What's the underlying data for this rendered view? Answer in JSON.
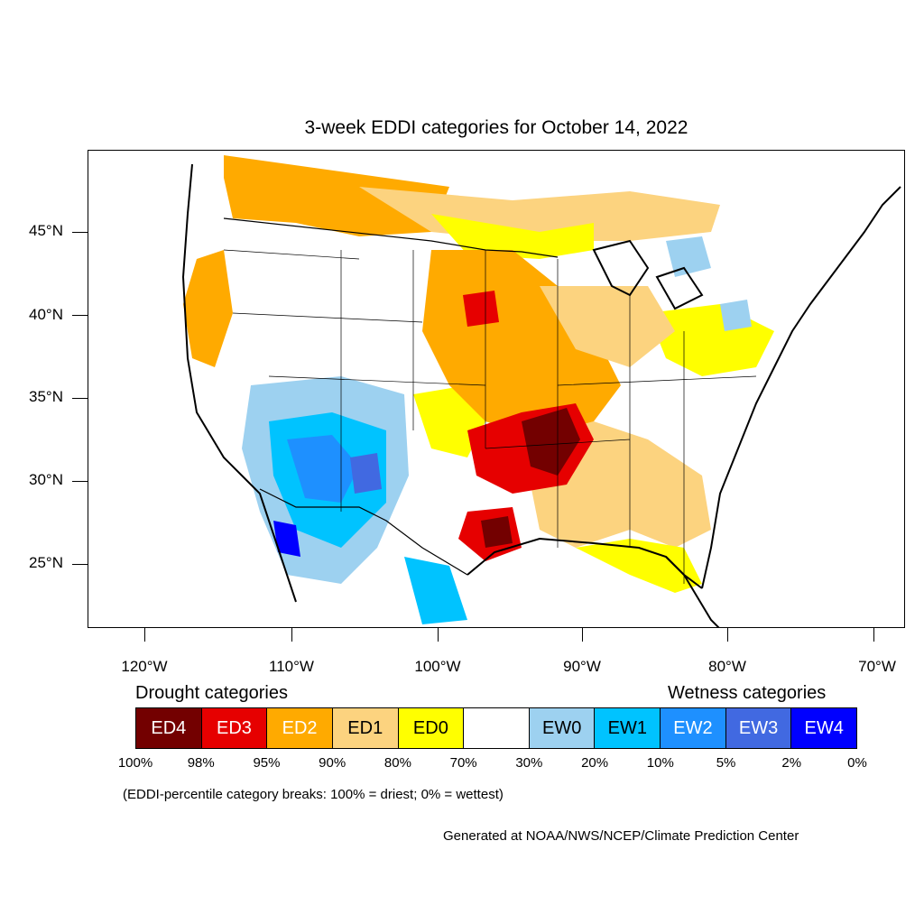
{
  "title": "3-week EDDI categories for October 14, 2022",
  "lat_labels": [
    "45°N",
    "40°N",
    "35°N",
    "30°N",
    "25°N"
  ],
  "lon_labels": [
    "120°W",
    "110°W",
    "100°W",
    "90°W",
    "80°W",
    "70°W"
  ],
  "drought_heading": "Drought categories",
  "wetness_heading": "Wetness categories",
  "categories": [
    {
      "label": "ED4",
      "color": "#730000",
      "text_color": "#ffffff"
    },
    {
      "label": "ED3",
      "color": "#e60000",
      "text_color": "#ffffff"
    },
    {
      "label": "ED2",
      "color": "#ffaa00",
      "text_color": "#ffffff"
    },
    {
      "label": "ED1",
      "color": "#fcd37f",
      "text_color": "#000000"
    },
    {
      "label": "ED0",
      "color": "#ffff00",
      "text_color": "#000000"
    },
    {
      "label": "",
      "color": "#ffffff",
      "text_color": "#000000"
    },
    {
      "label": "EW0",
      "color": "#9dd1f0",
      "text_color": "#000000"
    },
    {
      "label": "EW1",
      "color": "#00c3ff",
      "text_color": "#000000"
    },
    {
      "label": "EW2",
      "color": "#1e90ff",
      "text_color": "#ffffff"
    },
    {
      "label": "EW3",
      "color": "#4169e1",
      "text_color": "#ffffff"
    },
    {
      "label": "EW4",
      "color": "#0000ff",
      "text_color": "#ffffff"
    }
  ],
  "percent_breaks": [
    "100%",
    "98%",
    "95%",
    "90%",
    "80%",
    "70%",
    "30%",
    "20%",
    "10%",
    "5%",
    "2%",
    "0%"
  ],
  "note": "(EDDI-percentile category breaks: 100% = driest; 0% = wettest)",
  "credit": "Generated at NOAA/NWS/NCEP/Climate Prediction Center"
}
